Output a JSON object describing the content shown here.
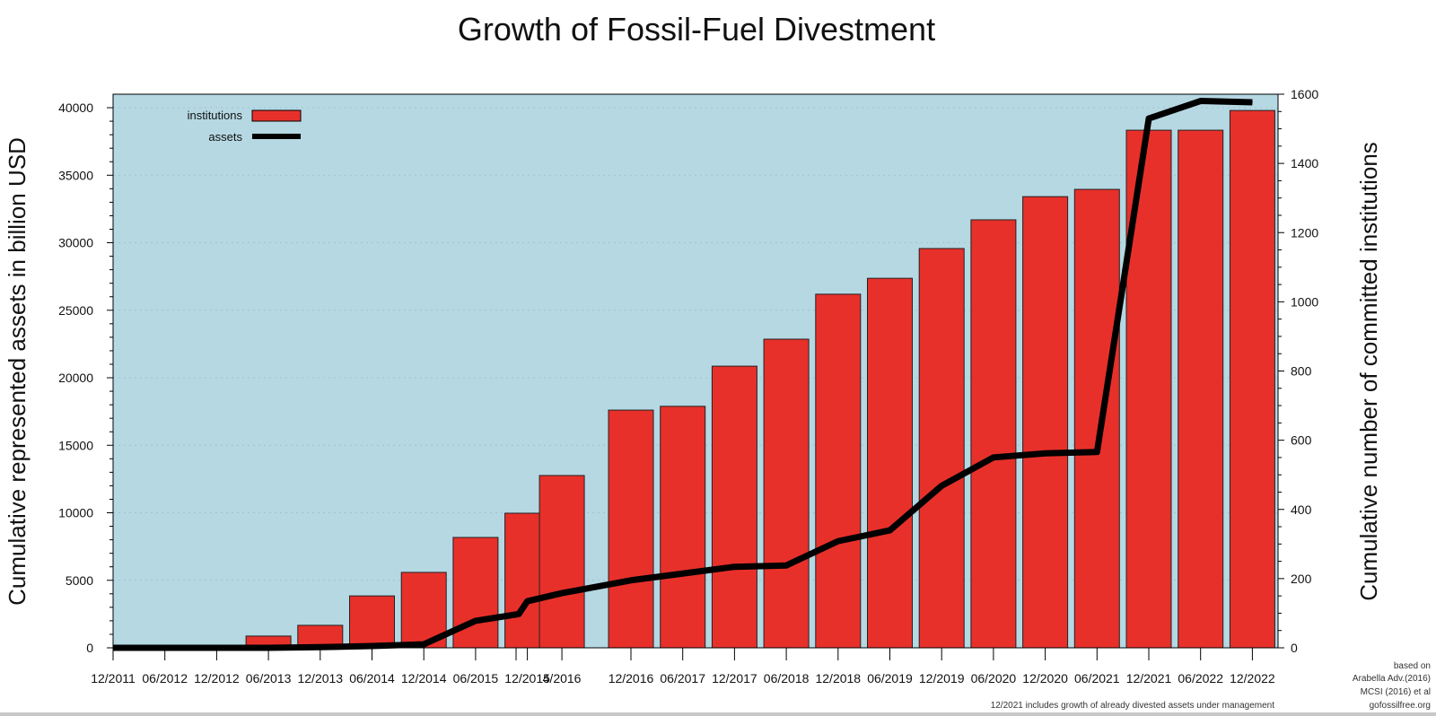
{
  "chart_data": {
    "type": "bar+line",
    "title": "Growth of Fossil-Fuel Divestment",
    "ylabel_left": "Cumulative represented assets in billion USD",
    "ylabel_right": "Cumulative number of committed institutions",
    "ylim_left": [
      0,
      41000
    ],
    "ylim_right": [
      0,
      1600
    ],
    "yticks_left": [
      0,
      5000,
      10000,
      15000,
      20000,
      25000,
      30000,
      35000,
      40000
    ],
    "yticks_right": [
      0,
      200,
      400,
      600,
      800,
      1000,
      1200,
      1400,
      1600
    ],
    "grid": "horizontal dotted",
    "legend_placement": "top-left",
    "background_color": "#b5d8e3",
    "categories": [
      "12/2011",
      "06/2012",
      "12/2012",
      "06/2013",
      "12/2013",
      "06/2014",
      "12/2014",
      "06/2015",
      "12/2015",
      "4/2016",
      "12/2016",
      "06/2017",
      "12/2017",
      "06/2018",
      "12/2018",
      "06/2019",
      "12/2019",
      "06/2020",
      "12/2020",
      "06/2021",
      "12/2021",
      "06/2022",
      "12/2022"
    ],
    "category_months": [
      "2011-12",
      "2012-06",
      "2012-12",
      "2013-06",
      "2013-12",
      "2014-06",
      "2014-12",
      "2015-06",
      "2015-12",
      "2016-04",
      "2016-12",
      "2017-06",
      "2017-12",
      "2018-06",
      "2018-12",
      "2019-06",
      "2019-12",
      "2020-06",
      "2020-12",
      "2021-06",
      "2021-12",
      "2022-06",
      "2022-12"
    ],
    "series": [
      {
        "name": "institutions",
        "type": "bar",
        "axis": "right",
        "color": "#e8302a",
        "values": [
          null,
          null,
          null,
          34,
          65,
          150,
          218,
          319,
          389,
          498,
          687,
          698,
          814,
          892,
          1022,
          1068,
          1154,
          1237,
          1304,
          1325,
          1496,
          1496,
          1553
        ]
      },
      {
        "name": "assets",
        "type": "line",
        "axis": "left",
        "color": "#000000",
        "points": [
          {
            "x": "2011-12",
            "y": 0
          },
          {
            "x": "2012-06",
            "y": 0
          },
          {
            "x": "2012-12",
            "y": 0
          },
          {
            "x": "2013-06",
            "y": 0
          },
          {
            "x": "2013-12",
            "y": 50
          },
          {
            "x": "2014-06",
            "y": 130
          },
          {
            "x": "2014-12",
            "y": 260
          },
          {
            "x": "2015-06",
            "y": 2000
          },
          {
            "x": "2015-11",
            "y": 2500
          },
          {
            "x": "2015-12",
            "y": 3450
          },
          {
            "x": "2016-04",
            "y": 4050
          },
          {
            "x": "2016-12",
            "y": 5000
          },
          {
            "x": "2017-06",
            "y": 5500
          },
          {
            "x": "2017-12",
            "y": 6000
          },
          {
            "x": "2018-06",
            "y": 6100
          },
          {
            "x": "2018-12",
            "y": 7900
          },
          {
            "x": "2019-06",
            "y": 8700
          },
          {
            "x": "2019-12",
            "y": 12000
          },
          {
            "x": "2020-06",
            "y": 14100
          },
          {
            "x": "2020-12",
            "y": 14400
          },
          {
            "x": "2021-06",
            "y": 14500
          },
          {
            "x": "2021-12",
            "y": 39200
          },
          {
            "x": "2022-06",
            "y": 40500
          },
          {
            "x": "2022-12",
            "y": 40400
          }
        ]
      }
    ],
    "source_lines": [
      "based on",
      "Arabella Adv.(2016)",
      "MCSI (2016) et al",
      "gofossilfree.org"
    ],
    "footnote": "12/2021 includes growth of already divested assets under management"
  }
}
